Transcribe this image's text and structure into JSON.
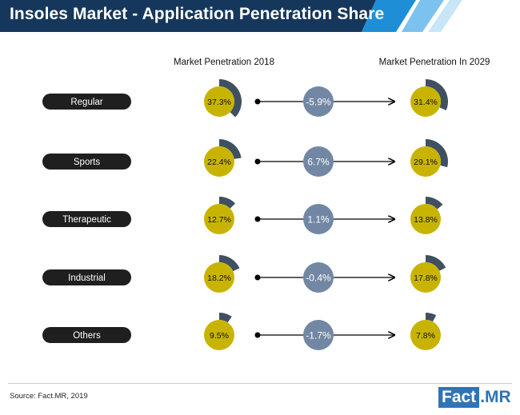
{
  "title": "Insoles Market - Application Penetration Share",
  "column_left": "Market Penetration 2018",
  "column_right": "Market Penetration In 2029",
  "source": "Source: Fact.MR, 2019",
  "logo": {
    "left": "Fact",
    "right": ".MR"
  },
  "colors": {
    "header": "#16375c",
    "header_accent": "#1e8fd6",
    "label_pill": "#1f1f1f",
    "circle": "#c8b400",
    "arc": "#3f5060",
    "change_circle": "#7287a3"
  },
  "chart_data": {
    "type": "table",
    "categories": [
      "Regular",
      "Sports",
      "Therapeutic",
      "Industrial",
      "Others"
    ],
    "series": [
      {
        "name": "Market Penetration 2018",
        "values": [
          37.3,
          22.4,
          12.7,
          18.2,
          9.5
        ]
      },
      {
        "name": "Market Penetration In 2029",
        "values": [
          31.4,
          29.1,
          13.8,
          17.8,
          7.8
        ]
      },
      {
        "values": [
          -5.9,
          6.7,
          1.1,
          -0.4,
          -1.7
        ]
      }
    ],
    "labels_2018": [
      "37.3%",
      "22.4%",
      "12.7%",
      "18.2%",
      "9.5%"
    ],
    "labels_2029": [
      "31.4%",
      "29.1%",
      "13.8%",
      "17.8%",
      "7.8%"
    ],
    "labels_change": [
      "-5.9%",
      "6.7%",
      "1.1%",
      "-0.4%",
      "-1.7%"
    ]
  }
}
